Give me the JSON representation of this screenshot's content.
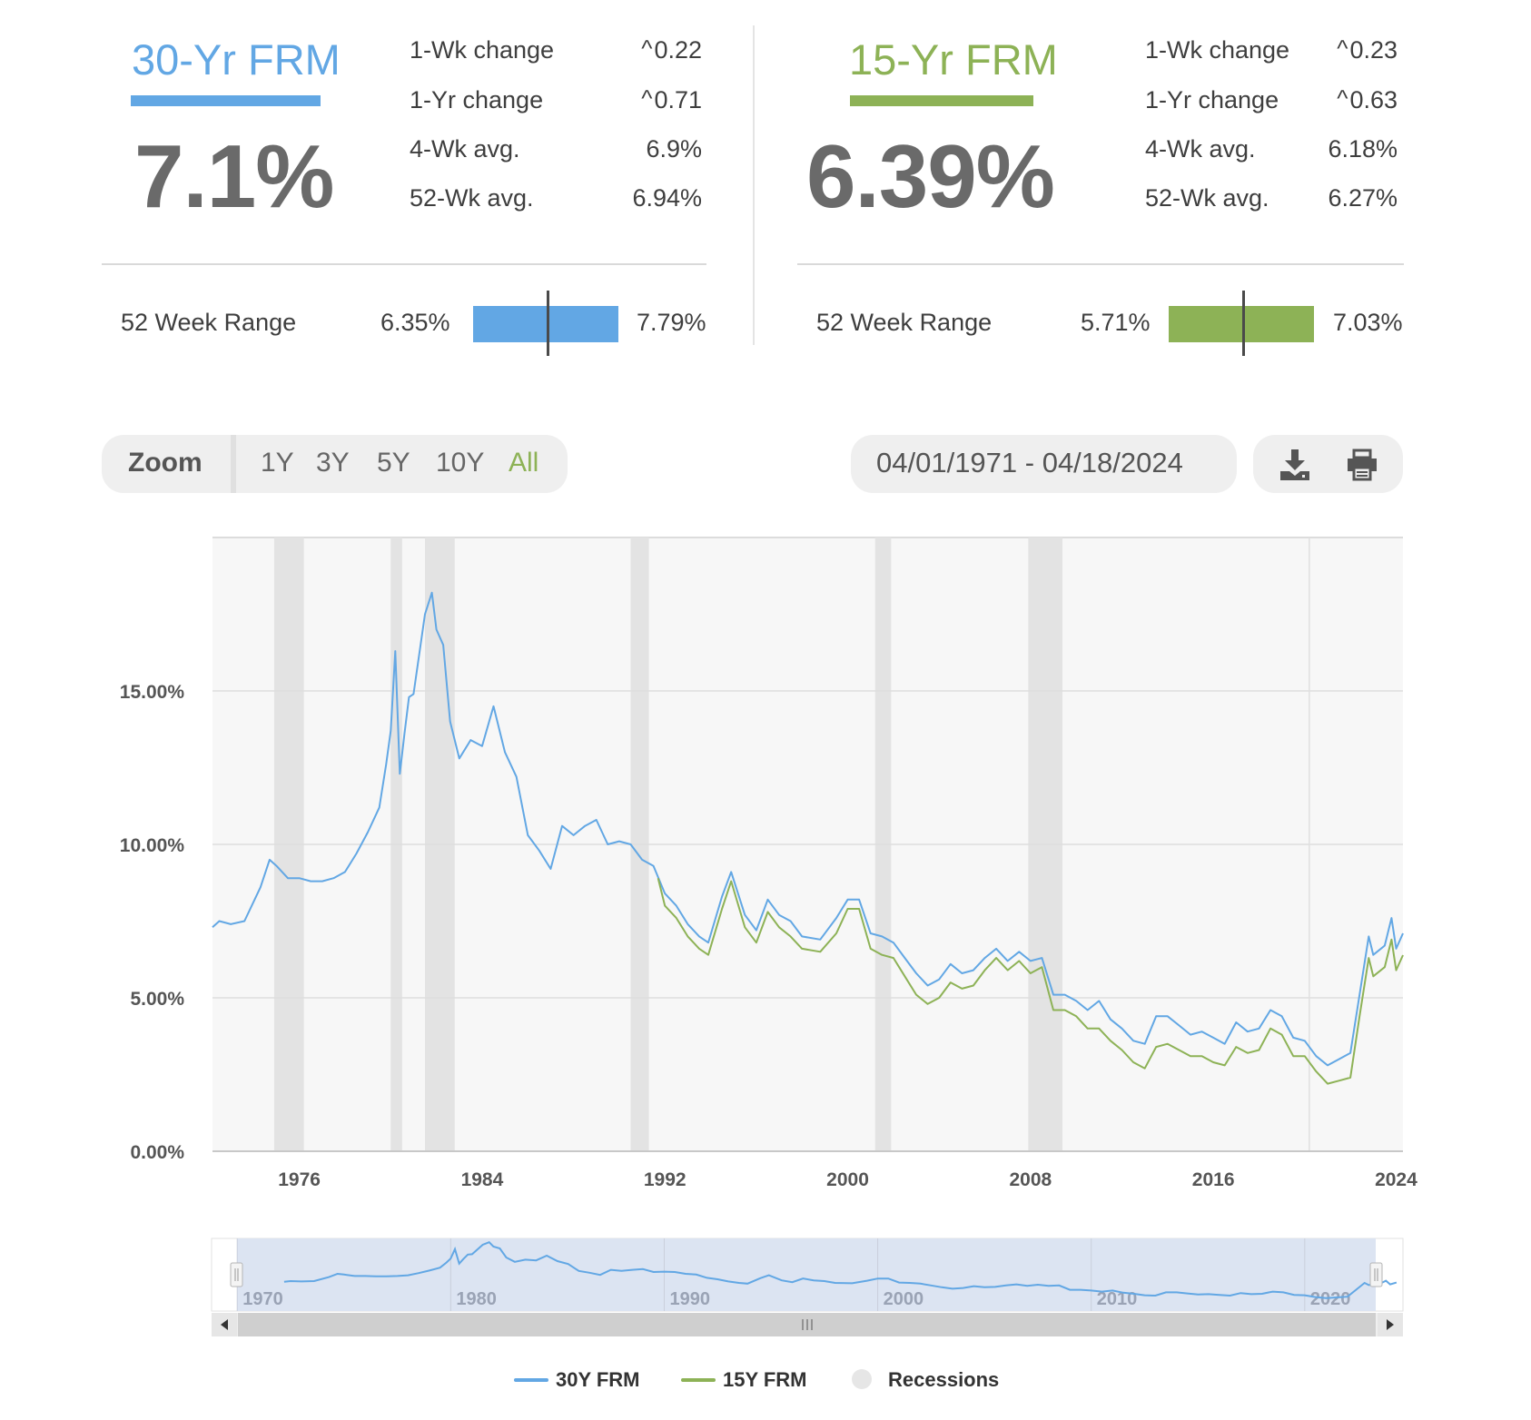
{
  "frm30": {
    "title": "30-Yr FRM",
    "rate": "7.1%",
    "color": "#62a7e4",
    "stats": [
      {
        "label": "1-Wk change",
        "value": "0.22",
        "trend": "up"
      },
      {
        "label": "1-Yr change",
        "value": "0.71",
        "trend": "up"
      },
      {
        "label": "4-Wk avg.",
        "value": "6.9%"
      },
      {
        "label": "52-Wk avg.",
        "value": "6.94%"
      }
    ],
    "range": {
      "label": "52 Week Range",
      "low": "6.35%",
      "high": "7.79%",
      "current_fraction": 0.51
    }
  },
  "frm15": {
    "title": "15-Yr FRM",
    "rate": "6.39%",
    "color": "#8db256",
    "stats": [
      {
        "label": "1-Wk change",
        "value": "0.23",
        "trend": "up"
      },
      {
        "label": "1-Yr change",
        "value": "0.63",
        "trend": "up"
      },
      {
        "label": "4-Wk avg.",
        "value": "6.18%"
      },
      {
        "label": "52-Wk avg.",
        "value": "6.27%"
      }
    ],
    "range": {
      "label": "52 Week Range",
      "low": "5.71%",
      "high": "7.03%",
      "current_fraction": 0.51
    }
  },
  "toolbar": {
    "zoom_label": "Zoom",
    "zoom_options": [
      "1Y",
      "3Y",
      "5Y",
      "10Y",
      "All"
    ],
    "active_zoom": "All",
    "active_color": "#8db256",
    "date_range": "04/01/1971 - 04/18/2024",
    "download_icon": "download-icon",
    "print_icon": "print-icon"
  },
  "legend": {
    "items": [
      {
        "label": "30Y FRM",
        "color": "#62a7e4",
        "kind": "line"
      },
      {
        "label": "15Y FRM",
        "color": "#8db256",
        "kind": "line"
      },
      {
        "label": "Recessions",
        "color": "#e6e6e6",
        "kind": "dot"
      }
    ]
  },
  "navigator": {
    "tick_labels": [
      "1970",
      "1980",
      "1990",
      "2000",
      "2010",
      "2020"
    ]
  },
  "chart_data": {
    "type": "line",
    "title": "",
    "xlabel": "",
    "ylabel": "",
    "xlim": [
      1972.2,
      2024.3
    ],
    "ylim": [
      0,
      20
    ],
    "y_ticks": [
      0,
      5,
      10,
      15
    ],
    "y_tick_labels": [
      "0.00%",
      "5.00%",
      "10.00%",
      "15.00%"
    ],
    "x_ticks": [
      1976,
      1984,
      1992,
      2000,
      2008,
      2016,
      2024
    ],
    "x_tick_labels": [
      "1976",
      "1984",
      "1992",
      "2000",
      "2008",
      "2016",
      "2024"
    ],
    "grid": true,
    "legend_position": "bottom-center",
    "recessions": [
      [
        1974.9,
        1976.2
      ],
      [
        1980.0,
        1980.5
      ],
      [
        1981.5,
        1982.8
      ],
      [
        1990.5,
        1991.3
      ],
      [
        2001.2,
        2001.9
      ],
      [
        2007.9,
        2009.4
      ]
    ],
    "series": [
      {
        "name": "30Y FRM",
        "color": "#62a7e4",
        "x": [
          1972.2,
          1972.5,
          1973.0,
          1973.6,
          1974.3,
          1974.7,
          1975.0,
          1975.5,
          1976.0,
          1976.5,
          1977.0,
          1977.5,
          1978.0,
          1978.5,
          1979.0,
          1979.5,
          1979.8,
          1980.0,
          1980.2,
          1980.4,
          1980.6,
          1980.8,
          1981.0,
          1981.5,
          1981.8,
          1982.0,
          1982.3,
          1982.6,
          1983.0,
          1983.5,
          1984.0,
          1984.5,
          1985.0,
          1985.5,
          1986.0,
          1986.5,
          1987.0,
          1987.5,
          1988.0,
          1988.5,
          1989.0,
          1989.5,
          1990.0,
          1990.5,
          1991.0,
          1991.5,
          1992.0,
          1992.5,
          1993.0,
          1993.5,
          1993.9,
          1994.5,
          1994.9,
          1995.5,
          1996.0,
          1996.5,
          1997.0,
          1997.5,
          1998.0,
          1998.8,
          1999.5,
          2000.0,
          2000.5,
          2001.0,
          2001.5,
          2002.0,
          2002.5,
          2003.0,
          2003.5,
          2004.0,
          2004.5,
          2005.0,
          2005.5,
          2006.0,
          2006.5,
          2007.0,
          2007.5,
          2008.0,
          2008.5,
          2009.0,
          2009.5,
          2010.0,
          2010.5,
          2011.0,
          2011.5,
          2012.0,
          2012.5,
          2013.0,
          2013.5,
          2014.0,
          2014.5,
          2015.0,
          2015.5,
          2016.0,
          2016.5,
          2017.0,
          2017.5,
          2018.0,
          2018.5,
          2019.0,
          2019.5,
          2020.0,
          2020.5,
          2021.0,
          2021.5,
          2022.0,
          2022.4,
          2022.8,
          2023.0,
          2023.5,
          2023.8,
          2024.0,
          2024.3
        ],
        "y": [
          7.3,
          7.5,
          7.4,
          7.5,
          8.6,
          9.5,
          9.3,
          8.9,
          8.9,
          8.8,
          8.8,
          8.9,
          9.1,
          9.7,
          10.4,
          11.2,
          12.6,
          13.7,
          16.3,
          12.3,
          13.6,
          14.8,
          14.9,
          17.5,
          18.2,
          17.0,
          16.5,
          14.0,
          12.8,
          13.4,
          13.2,
          14.5,
          13.0,
          12.2,
          10.3,
          9.8,
          9.2,
          10.6,
          10.3,
          10.6,
          10.8,
          10.0,
          10.1,
          10.0,
          9.5,
          9.3,
          8.4,
          8.0,
          7.4,
          7.0,
          6.8,
          8.3,
          9.1,
          7.7,
          7.2,
          8.2,
          7.7,
          7.5,
          7.0,
          6.9,
          7.6,
          8.2,
          8.2,
          7.1,
          7.0,
          6.8,
          6.3,
          5.8,
          5.4,
          5.6,
          6.1,
          5.8,
          5.9,
          6.3,
          6.6,
          6.2,
          6.5,
          6.2,
          6.3,
          5.1,
          5.1,
          4.9,
          4.6,
          4.9,
          4.3,
          4.0,
          3.6,
          3.5,
          4.4,
          4.4,
          4.1,
          3.8,
          3.9,
          3.7,
          3.5,
          4.2,
          3.9,
          4.0,
          4.6,
          4.4,
          3.7,
          3.6,
          3.1,
          2.8,
          3.0,
          3.2,
          5.1,
          7.0,
          6.4,
          6.7,
          7.6,
          6.6,
          7.1
        ]
      },
      {
        "name": "15Y FRM",
        "color": "#8db256",
        "x": [
          1991.7,
          1992.0,
          1992.5,
          1993.0,
          1993.5,
          1993.9,
          1994.5,
          1994.9,
          1995.5,
          1996.0,
          1996.5,
          1997.0,
          1997.5,
          1998.0,
          1998.8,
          1999.5,
          2000.0,
          2000.5,
          2001.0,
          2001.5,
          2002.0,
          2002.5,
          2003.0,
          2003.5,
          2004.0,
          2004.5,
          2005.0,
          2005.5,
          2006.0,
          2006.5,
          2007.0,
          2007.5,
          2008.0,
          2008.5,
          2009.0,
          2009.5,
          2010.0,
          2010.5,
          2011.0,
          2011.5,
          2012.0,
          2012.5,
          2013.0,
          2013.5,
          2014.0,
          2014.5,
          2015.0,
          2015.5,
          2016.0,
          2016.5,
          2017.0,
          2017.5,
          2018.0,
          2018.5,
          2019.0,
          2019.5,
          2020.0,
          2020.5,
          2021.0,
          2021.5,
          2022.0,
          2022.4,
          2022.8,
          2023.0,
          2023.5,
          2023.8,
          2024.0,
          2024.3
        ],
        "y": [
          8.9,
          8.0,
          7.6,
          7.0,
          6.6,
          6.4,
          7.9,
          8.8,
          7.3,
          6.8,
          7.8,
          7.3,
          7.0,
          6.6,
          6.5,
          7.1,
          7.9,
          7.9,
          6.6,
          6.4,
          6.3,
          5.7,
          5.1,
          4.8,
          5.0,
          5.5,
          5.3,
          5.4,
          5.9,
          6.3,
          5.9,
          6.2,
          5.8,
          6.0,
          4.6,
          4.6,
          4.4,
          4.0,
          4.0,
          3.6,
          3.3,
          2.9,
          2.7,
          3.4,
          3.5,
          3.3,
          3.1,
          3.1,
          2.9,
          2.8,
          3.4,
          3.2,
          3.3,
          4.0,
          3.8,
          3.1,
          3.1,
          2.6,
          2.2,
          2.3,
          2.4,
          4.4,
          6.3,
          5.7,
          6.0,
          6.9,
          5.9,
          6.39
        ]
      }
    ]
  }
}
